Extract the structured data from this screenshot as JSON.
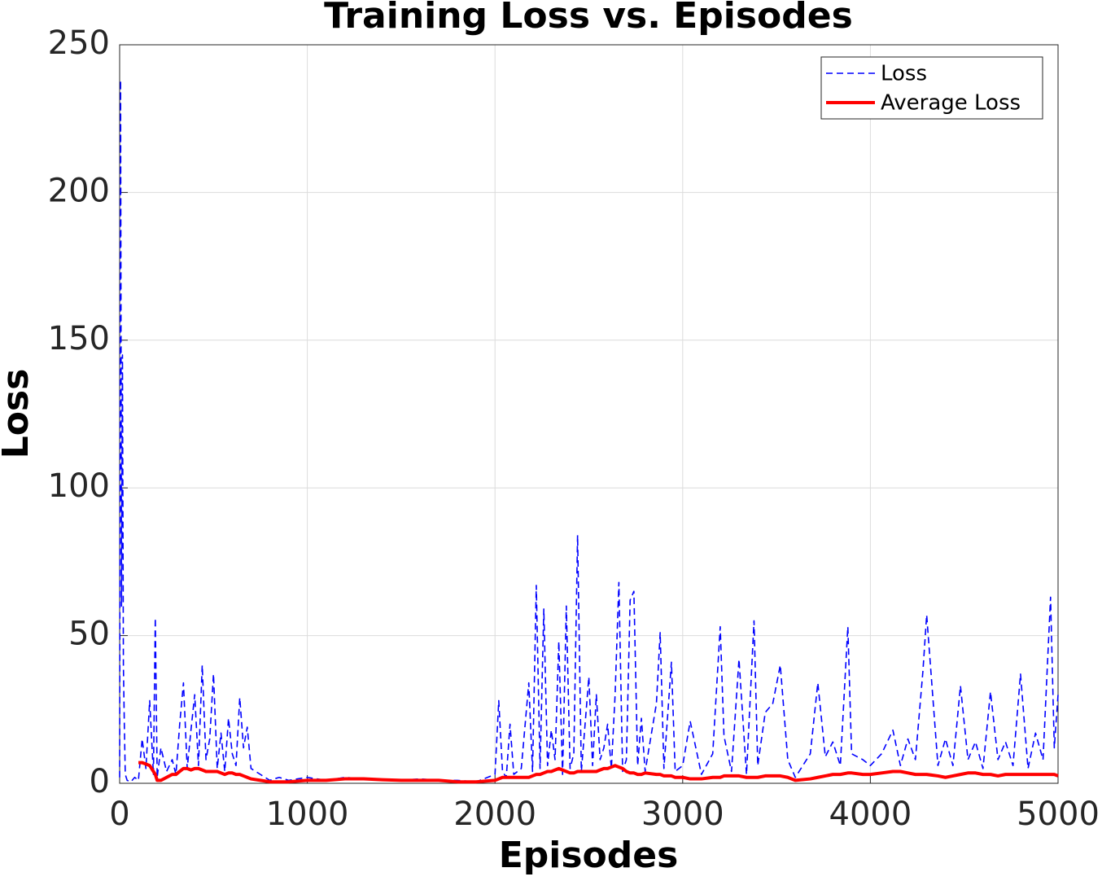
{
  "chart_data": {
    "type": "line",
    "title": "Training Loss vs. Episodes",
    "xlabel": "Episodes",
    "ylabel": "Loss",
    "x": [
      0,
      5,
      10,
      15,
      20,
      25,
      30,
      40,
      60,
      80,
      100,
      120,
      140,
      160,
      180,
      190,
      200,
      220,
      250,
      280,
      300,
      320,
      340,
      360,
      380,
      400,
      420,
      440,
      460,
      480,
      500,
      520,
      540,
      560,
      580,
      600,
      620,
      640,
      660,
      680,
      700,
      750,
      800,
      850,
      900,
      1000,
      1100,
      1200,
      1300,
      1400,
      1500,
      1600,
      1700,
      1800,
      1900,
      2000,
      2020,
      2040,
      2060,
      2080,
      2100,
      2140,
      2180,
      2200,
      2220,
      2240,
      2260,
      2280,
      2300,
      2320,
      2340,
      2360,
      2380,
      2400,
      2420,
      2440,
      2460,
      2480,
      2500,
      2520,
      2540,
      2560,
      2580,
      2600,
      2620,
      2640,
      2660,
      2680,
      2700,
      2720,
      2740,
      2760,
      2780,
      2800,
      2860,
      2880,
      2900,
      2940,
      2960,
      3000,
      3040,
      3100,
      3160,
      3200,
      3220,
      3260,
      3300,
      3340,
      3380,
      3400,
      3440,
      3480,
      3520,
      3560,
      3600,
      3680,
      3720,
      3760,
      3800,
      3840,
      3880,
      3900,
      3960,
      4000,
      4060,
      4120,
      4160,
      4200,
      4240,
      4280,
      4300,
      4360,
      4400,
      4440,
      4480,
      4520,
      4560,
      4600,
      4640,
      4680,
      4720,
      4760,
      4800,
      4840,
      4880,
      4920,
      4960,
      4980,
      5000
    ],
    "series": [
      {
        "name": "Loss",
        "color": "#0000ff",
        "style": "dashed",
        "values": [
          2,
          238,
          60,
          145,
          40,
          20,
          3,
          1,
          0.5,
          2,
          1,
          15,
          5,
          28,
          3,
          56,
          2,
          12,
          4,
          8,
          3,
          20,
          34,
          5,
          18,
          30,
          6,
          40,
          8,
          15,
          37,
          5,
          17,
          4,
          22,
          10,
          6,
          29,
          12,
          19,
          5,
          3,
          1,
          2,
          1,
          2,
          1,
          2,
          1.5,
          1,
          1,
          1.5,
          1,
          1,
          0.5,
          3,
          28,
          4,
          2,
          20,
          3,
          5,
          34,
          4,
          67,
          5,
          59,
          6,
          18,
          8,
          48,
          3,
          60,
          5,
          10,
          84,
          4,
          20,
          36,
          6,
          30,
          8,
          12,
          20,
          5,
          30,
          68,
          4,
          8,
          62,
          65,
          6,
          22,
          4,
          27,
          51,
          5,
          41,
          4,
          6,
          21,
          3,
          10,
          53,
          16,
          4,
          42,
          3,
          55,
          6,
          24,
          27,
          40,
          8,
          2,
          10,
          34,
          9,
          14,
          6,
          53,
          10,
          8,
          6,
          10,
          18,
          6,
          15,
          8,
          38,
          57,
          6,
          15,
          6,
          33,
          8,
          14,
          5,
          31,
          8,
          14,
          6,
          37,
          5,
          17,
          8,
          63,
          12,
          30
        ]
      },
      {
        "name": "Average Loss",
        "color": "#ff0000",
        "style": "solid",
        "values": [
          null,
          null,
          null,
          null,
          null,
          null,
          null,
          null,
          null,
          null,
          7,
          7,
          6.5,
          6,
          4,
          3,
          1,
          1,
          2,
          3,
          3,
          4,
          5,
          5,
          4.5,
          5,
          5,
          4.5,
          4,
          4,
          4,
          4,
          3.5,
          3,
          3.5,
          3.5,
          3,
          3,
          2.5,
          2,
          1.5,
          1,
          0.5,
          0.5,
          0.5,
          1,
          1,
          1.5,
          1.5,
          1.2,
          1,
          1,
          1,
          0.5,
          0.5,
          1,
          1.5,
          2,
          2,
          2,
          2,
          2,
          2,
          2.5,
          3,
          3,
          3.5,
          4,
          4,
          4.5,
          5,
          4.5,
          4,
          3.5,
          3.5,
          4,
          4,
          4,
          4,
          4,
          4,
          4.5,
          5,
          5,
          5.5,
          6,
          5.5,
          5,
          4,
          3.5,
          3.5,
          3,
          3,
          3.5,
          3,
          3,
          2.5,
          2.5,
          2,
          2,
          1.5,
          1.5,
          2,
          2,
          2.5,
          2.5,
          2.5,
          2,
          2,
          2,
          2.5,
          2.5,
          2.5,
          2,
          1,
          1.5,
          2,
          2.5,
          3,
          3,
          3.5,
          3.5,
          3,
          3,
          3.5,
          4,
          4,
          3.5,
          3,
          3,
          3,
          2.5,
          2,
          2.5,
          3,
          3.5,
          3.5,
          3,
          3,
          2.5,
          3,
          3,
          3,
          3,
          3,
          3,
          3,
          3,
          2.5
        ]
      }
    ],
    "xlim": [
      0,
      5000
    ],
    "xticks": [
      0,
      1000,
      2000,
      3000,
      4000,
      5000
    ],
    "ylim": [
      0,
      250
    ],
    "yticks": [
      0,
      50,
      100,
      150,
      200,
      250
    ],
    "grid": true,
    "legend": "upper right"
  }
}
